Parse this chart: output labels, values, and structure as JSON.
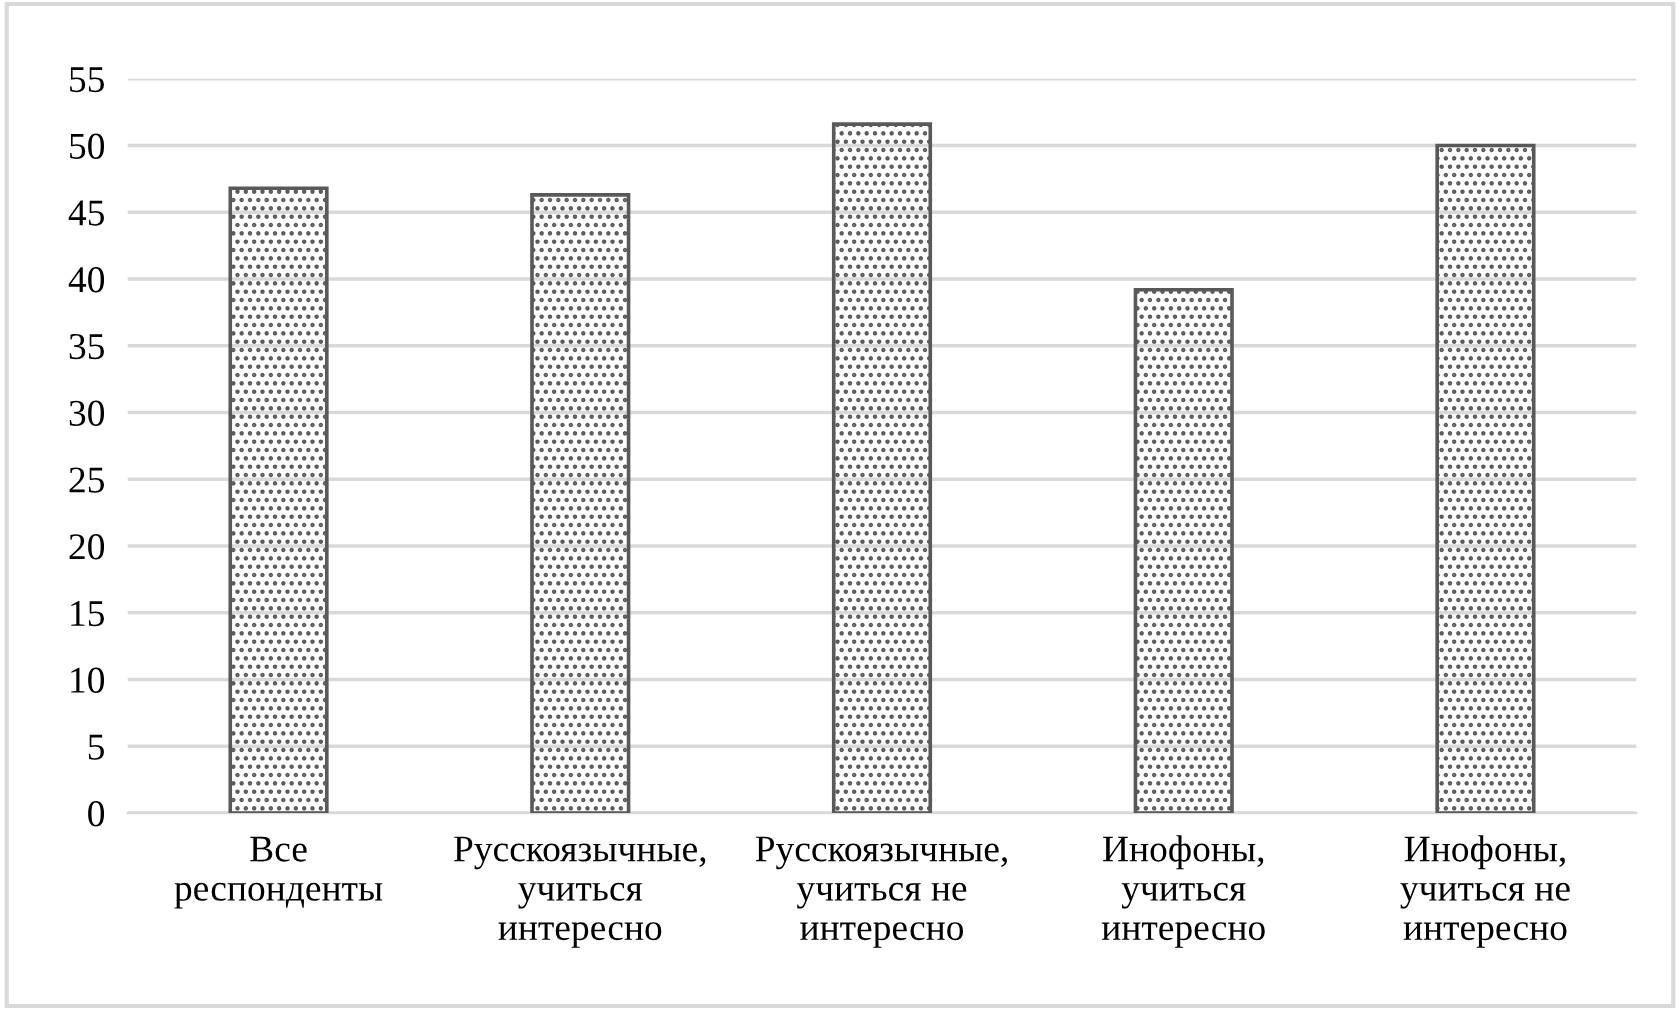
{
  "chart_data": {
    "type": "bar",
    "categories": [
      "Все\nреспонденты",
      "Русскоязычные,\nучиться\nинтересно",
      "Русскоязычные,\nучиться не\nинтересно",
      "Инофоны,\nучиться\nинтересно",
      "Инофоны,\nучиться не\nинтересно"
    ],
    "values": [
      46.8,
      46.3,
      51.6,
      39.2,
      50.0
    ],
    "color": "#595959",
    "ylim": [
      0,
      55
    ],
    "yticks": [
      0,
      5,
      10,
      15,
      20,
      25,
      30,
      35,
      40,
      45,
      50,
      55
    ],
    "grid": "y"
  }
}
